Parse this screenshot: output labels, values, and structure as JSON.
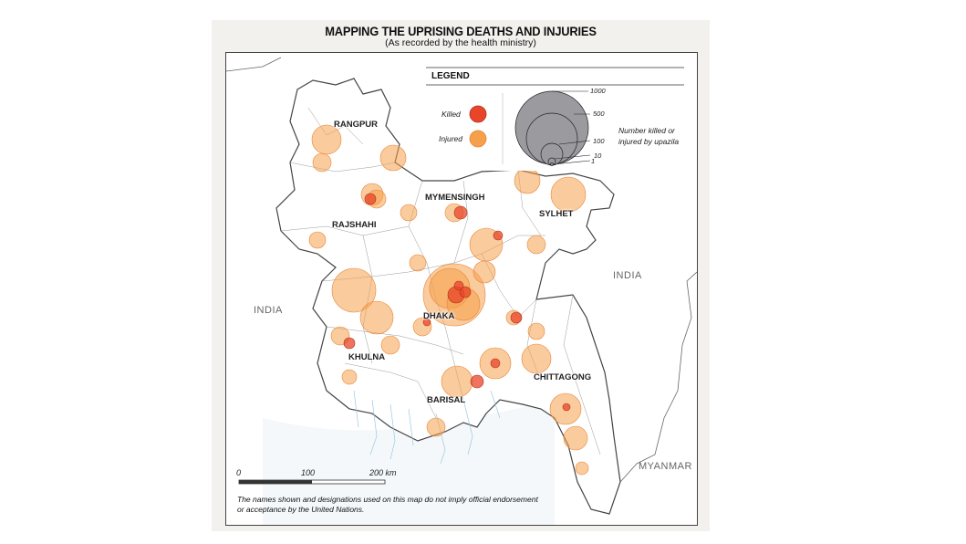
{
  "title": "MAPPING THE UPRISING DEATHS AND INJURIES",
  "subtitle": "(As recorded by the health ministry)",
  "legend": {
    "title": "LEGEND",
    "killed_label": "Killed",
    "injured_label": "Injured",
    "size_values": [
      "1000",
      "500",
      "100",
      "10",
      "1"
    ],
    "size_description": "Number killed or injured by upazila",
    "colors": {
      "killed": "#e8452a",
      "injured": "#f5a04a",
      "scale_circle": "#9b9a9f"
    }
  },
  "country_labels": {
    "india_west": "INDIA",
    "india_east": "INDIA",
    "myanmar": "MYANMAR"
  },
  "division_labels": {
    "rangpur": "RANGPUR",
    "rajshahi": "RAJSHAHI",
    "mymensingh": "MYMENSINGH",
    "sylhet": "SYLHET",
    "dhaka": "DHAKA",
    "khulna": "KHULNA",
    "barisal": "BARISAL",
    "chittagong": "CHITTAGONG"
  },
  "scale_bar": {
    "labels": [
      "0",
      "100",
      "200 km"
    ]
  },
  "disclaimer": "The names shown and designations used on this map do not imply official endorsement or acceptance by the United Nations."
}
